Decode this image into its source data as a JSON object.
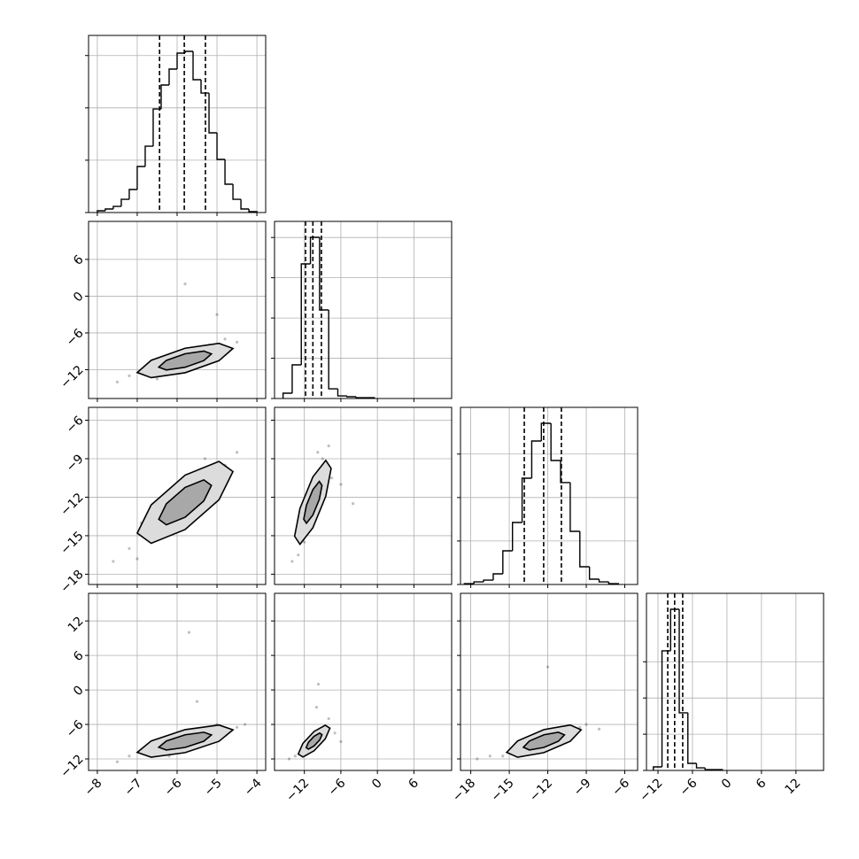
{
  "chart_data": [
    {
      "type": "histogram",
      "color": "#000000",
      "xlim": [
        -8.22,
        -3.78
      ],
      "xticks": [
        -8,
        -7,
        -6,
        -5,
        -4
      ],
      "ylim": [
        0,
        1100
      ],
      "yticks": [
        0,
        325,
        650,
        975
      ],
      "bins": [
        -8,
        -7.8,
        -7.6,
        -7.4,
        -7.2,
        -7.0,
        -6.8,
        -6.6,
        -6.4,
        -6.2,
        -6.0,
        -5.8,
        -5.6,
        -5.4,
        -5.2,
        -5.0,
        -4.8,
        -4.6,
        -4.4,
        -4.2,
        -4.0
      ],
      "counts": [
        11,
        22,
        38,
        82,
        143,
        286,
        412,
        643,
        792,
        891,
        990,
        1001,
        825,
        742,
        495,
        330,
        176,
        82,
        22,
        6
      ],
      "quantiles": [
        -6.44,
        -5.82,
        -5.29
      ]
    },
    {
      "type": "scatter",
      "color": "#000000",
      "xlim": [
        -8.22,
        -3.78
      ],
      "xticks": [
        -8,
        -7,
        -6,
        -5,
        -4
      ],
      "ylim": [
        -16.7,
        12.2
      ],
      "yticks": [
        {
          "value": -12,
          "label": "−12"
        },
        {
          "value": -6,
          "label": "−6"
        },
        0,
        6
      ],
      "x": [
        -7.5,
        -7.2,
        -6.8,
        -6.3,
        -6.0,
        -5.5,
        -5.2,
        -4.8,
        -4.5,
        -6.5,
        -5.8,
        -5.0,
        -6.1,
        -5.4
      ],
      "y": [
        -14,
        -13,
        -12.5,
        -11,
        -11.5,
        -9,
        -8,
        -7,
        -7.5,
        -13.5,
        2,
        -3,
        -12,
        -9.5
      ],
      "contours": [
        {
          "x": [
            -4.6,
            -4.95,
            -5.8,
            -6.65,
            -7.0,
            -6.65,
            -5.8,
            -4.95
          ],
          "y": [
            -8.54,
            -7.7,
            -8.5,
            -10.47,
            -12.46,
            -13.3,
            -12.5,
            -10.53
          ]
        },
        {
          "x": [
            -5.14,
            -5.33,
            -5.8,
            -6.27,
            -6.46,
            -6.27,
            -5.8,
            -5.33
          ],
          "y": [
            -9.42,
            -8.96,
            -9.4,
            -10.48,
            -11.58,
            -12.04,
            -11.6,
            -10.52
          ]
        }
      ]
    },
    {
      "type": "histogram",
      "color": "#000000",
      "xlim": [
        -16.9,
        12.2
      ],
      "xticks": [
        -12,
        -6,
        0,
        6
      ],
      "ylim": [
        0,
        1100
      ],
      "yticks": [
        0,
        250,
        500,
        750,
        1000
      ],
      "bins": [
        -15.5,
        -14,
        -12.5,
        -11,
        -9.5,
        -8,
        -6.5,
        -5,
        -3.5,
        -2,
        -0.5
      ],
      "counts": [
        33,
        209,
        836,
        1001,
        550,
        60,
        16,
        11,
        5,
        5
      ],
      "quantiles": [
        -11.8,
        -10.6,
        -9.2
      ]
    },
    {
      "type": "scatter",
      "color": "#000000",
      "xlim": [
        -8.22,
        -3.78
      ],
      "xticks": [
        -8,
        -7,
        -6,
        -5,
        -4
      ],
      "ylim": [
        -18.8,
        -5.0
      ],
      "yticks": [
        {
          "value": -18,
          "label": "−18"
        },
        {
          "value": -15,
          "label": "−15"
        },
        {
          "value": -12,
          "label": "−12"
        },
        {
          "value": -9,
          "label": "−9"
        },
        {
          "value": -6,
          "label": "−6"
        }
      ],
      "x": [
        -7.6,
        -7.2,
        -6.9,
        -6.4,
        -6.0,
        -5.6,
        -5.2,
        -4.8,
        -4.5,
        -7.0,
        -5.9,
        -4.9,
        -6.6,
        -5.3
      ],
      "y": [
        -17,
        -16,
        -14,
        -15,
        -13.5,
        -11,
        -10,
        -9.5,
        -8.5,
        -16.8,
        -12,
        -11.5,
        -12.8,
        -9
      ],
      "contours": [
        {
          "x": [
            -4.6,
            -4.95,
            -5.8,
            -6.65,
            -7.0,
            -6.65,
            -5.8,
            -4.95
          ],
          "y": [
            -10.0,
            -9.21,
            -10.28,
            -12.6,
            -14.8,
            -15.59,
            -14.52,
            -12.2
          ]
        },
        {
          "x": [
            -5.14,
            -5.33,
            -5.8,
            -6.27,
            -6.46,
            -6.27,
            -5.8,
            -5.33
          ],
          "y": [
            -11.08,
            -10.65,
            -11.24,
            -12.51,
            -13.72,
            -14.15,
            -13.56,
            -12.29
          ]
        }
      ]
    },
    {
      "type": "scatter",
      "color": "#000000",
      "xlim": [
        -16.9,
        12.2
      ],
      "xticks": [
        -12,
        -6,
        0,
        6
      ],
      "ylim": [
        -18.8,
        -5.0
      ],
      "yticks": [
        -18,
        -15,
        -12,
        -9,
        -6
      ],
      "x": [
        -14,
        -13,
        -12.5,
        -11.5,
        -10.8,
        -10,
        -9.5,
        -9,
        -8,
        -6,
        -4,
        -12,
        -9.8,
        -7.5
      ],
      "y": [
        -17,
        -16.5,
        -15,
        -14,
        -12.5,
        -11,
        -10,
        -9,
        -8,
        -11,
        -12.5,
        -15.5,
        -8.5,
        -10.5
      ],
      "contours": [
        {
          "x": [
            -7.6,
            -8.48,
            -10.6,
            -12.72,
            -13.6,
            -12.72,
            -10.6,
            -8.48
          ],
          "y": [
            -9.76,
            -9.13,
            -10.42,
            -12.87,
            -15.04,
            -15.67,
            -14.38,
            -11.93
          ]
        },
        {
          "x": [
            -9.1,
            -9.54,
            -10.6,
            -11.66,
            -12.1,
            -11.66,
            -10.6,
            -9.54
          ],
          "y": [
            -11.08,
            -10.77,
            -11.41,
            -12.63,
            -13.72,
            -14.03,
            -13.39,
            -12.17
          ]
        }
      ]
    },
    {
      "type": "histogram",
      "color": "#000000",
      "xlim": [
        -18.8,
        -5.0
      ],
      "xticks": [
        -18,
        -15,
        -12,
        -9,
        -6
      ],
      "ylim": [
        0,
        1100
      ],
      "yticks": [
        0,
        270,
        540,
        810
      ],
      "bins": [
        -18.5,
        -17.75,
        -17,
        -16.25,
        -15.5,
        -14.75,
        -14,
        -13.25,
        -12.5,
        -11.75,
        -11,
        -10.25,
        -9.5,
        -8.75,
        -8,
        -7.25,
        -6.5
      ],
      "counts": [
        5,
        16,
        27,
        66,
        209,
        385,
        660,
        891,
        1001,
        770,
        633,
        330,
        110,
        33,
        16,
        5
      ],
      "quantiles": [
        -13.83,
        -12.32,
        -10.94
      ]
    },
    {
      "type": "scatter",
      "color": "#000000",
      "xlim": [
        -8.22,
        -3.78
      ],
      "xticks": [
        {
          "value": -8,
          "label": "−8"
        },
        {
          "value": -7,
          "label": "−7"
        },
        {
          "value": -6,
          "label": "−6"
        },
        {
          "value": -5,
          "label": "−5"
        },
        {
          "value": -4,
          "label": "−4"
        }
      ],
      "ylim": [
        -14,
        16.8
      ],
      "yticks": [
        {
          "value": -12,
          "label": "−12"
        },
        {
          "value": -6,
          "label": "−6"
        },
        0,
        6,
        12
      ],
      "x": [
        -7.5,
        -7.2,
        -6.8,
        -6.4,
        -6.0,
        -5.6,
        -5.2,
        -4.8,
        -4.5,
        -5.7,
        -5.5,
        -6.2,
        -5.0,
        -4.3
      ],
      "y": [
        -12.5,
        -11.5,
        -11,
        -10.5,
        -10,
        -8.5,
        -8,
        -7,
        -6.5,
        10,
        -2,
        -11.5,
        -6,
        -6
      ],
      "contours": [
        {
          "x": [
            -4.6,
            -4.95,
            -5.8,
            -6.65,
            -7.0,
            -6.65,
            -5.8,
            -4.95
          ],
          "y": [
            -6.94,
            -6.1,
            -6.9,
            -8.87,
            -10.86,
            -11.7,
            -10.9,
            -8.93
          ]
        },
        {
          "x": [
            -5.14,
            -5.33,
            -5.8,
            -6.27,
            -6.46,
            -6.27,
            -5.8,
            -5.33
          ],
          "y": [
            -7.82,
            -7.36,
            -7.8,
            -8.88,
            -9.98,
            -10.44,
            -10.0,
            -8.92
          ]
        }
      ]
    },
    {
      "type": "scatter",
      "color": "#000000",
      "xlim": [
        -16.9,
        12.2
      ],
      "xticks": [
        {
          "value": -12,
          "label": "−12"
        },
        {
          "value": -6,
          "label": "−6"
        },
        0,
        6
      ],
      "ylim": [
        -14,
        16.8
      ],
      "yticks": [
        -12,
        -6,
        0,
        6,
        12
      ],
      "x": [
        -14.5,
        -13.5,
        -12.5,
        -12,
        -11,
        -10.5,
        -10,
        -9.5,
        -8.5,
        -8,
        -7,
        -9.7,
        -10.2,
        -6
      ],
      "y": [
        -12,
        -11.5,
        -11,
        -10,
        -9.5,
        -9,
        -3,
        -8,
        -6.5,
        -5,
        -7.5,
        1,
        -8.5,
        -9
      ],
      "contours": [
        {
          "x": [
            -7.8,
            -8.56,
            -10.4,
            -12.24,
            -13.0,
            -12.24,
            -10.4,
            -8.56
          ],
          "y": [
            -6.66,
            -6.13,
            -7.22,
            -9.3,
            -11.14,
            -11.67,
            -10.58,
            -8.5
          ]
        },
        {
          "x": [
            -9.1,
            -9.48,
            -10.4,
            -11.32,
            -11.7,
            -11.32,
            -10.4,
            -9.48
          ],
          "y": [
            -7.78,
            -7.51,
            -8.06,
            -9.1,
            -10.02,
            -10.29,
            -9.74,
            -8.7
          ]
        }
      ]
    },
    {
      "type": "scatter",
      "color": "#000000",
      "xlim": [
        -18.8,
        -5.0
      ],
      "xticks": [
        {
          "value": -18,
          "label": "−18"
        },
        {
          "value": -15,
          "label": "−15"
        },
        {
          "value": -12,
          "label": "−12"
        },
        {
          "value": -9,
          "label": "−9"
        },
        {
          "value": -6,
          "label": "−6"
        }
      ],
      "ylim": [
        -14,
        16.8
      ],
      "yticks": [
        -12,
        -6,
        0,
        6,
        12
      ],
      "x": [
        -17.5,
        -16.5,
        -15.5,
        -14.8,
        -14,
        -13,
        -12,
        -11,
        -10,
        -9.5,
        -9,
        -12,
        -13.5,
        -8
      ],
      "y": [
        -12,
        -11.5,
        -11.5,
        -10.5,
        -10,
        -9.5,
        -9,
        -8,
        -7.5,
        -6.5,
        -6,
        4,
        -10.5,
        -6.8
      ],
      "contours": [
        {
          "x": [
            -9.4,
            -10.25,
            -12.3,
            -14.35,
            -15.2,
            -14.35,
            -12.3,
            -10.25
          ],
          "y": [
            -6.94,
            -6.1,
            -6.9,
            -8.87,
            -10.86,
            -11.7,
            -10.9,
            -8.93
          ]
        },
        {
          "x": [
            -10.7,
            -11.17,
            -12.3,
            -13.43,
            -13.9,
            -13.43,
            -12.3,
            -11.17
          ],
          "y": [
            -7.82,
            -7.36,
            -7.8,
            -8.88,
            -9.98,
            -10.44,
            -10.0,
            -8.92
          ]
        }
      ]
    },
    {
      "type": "histogram",
      "color": "#000000",
      "xlim": [
        -14,
        16.8
      ],
      "xticks": [
        {
          "value": -12,
          "label": "−12"
        },
        {
          "value": -6,
          "label": "−6"
        },
        0,
        6,
        12
      ],
      "ylim": [
        0,
        1100
      ],
      "yticks": [
        0,
        225,
        450,
        675
      ],
      "bins": [
        -12.8,
        -11.3,
        -9.8,
        -8.3,
        -6.8,
        -5.3,
        -3.8,
        -2.3,
        -0.8
      ],
      "counts": [
        22,
        743,
        1001,
        358,
        44,
        16,
        5,
        5
      ],
      "quantiles": [
        -10.3,
        -9.1,
        -7.7
      ]
    }
  ]
}
